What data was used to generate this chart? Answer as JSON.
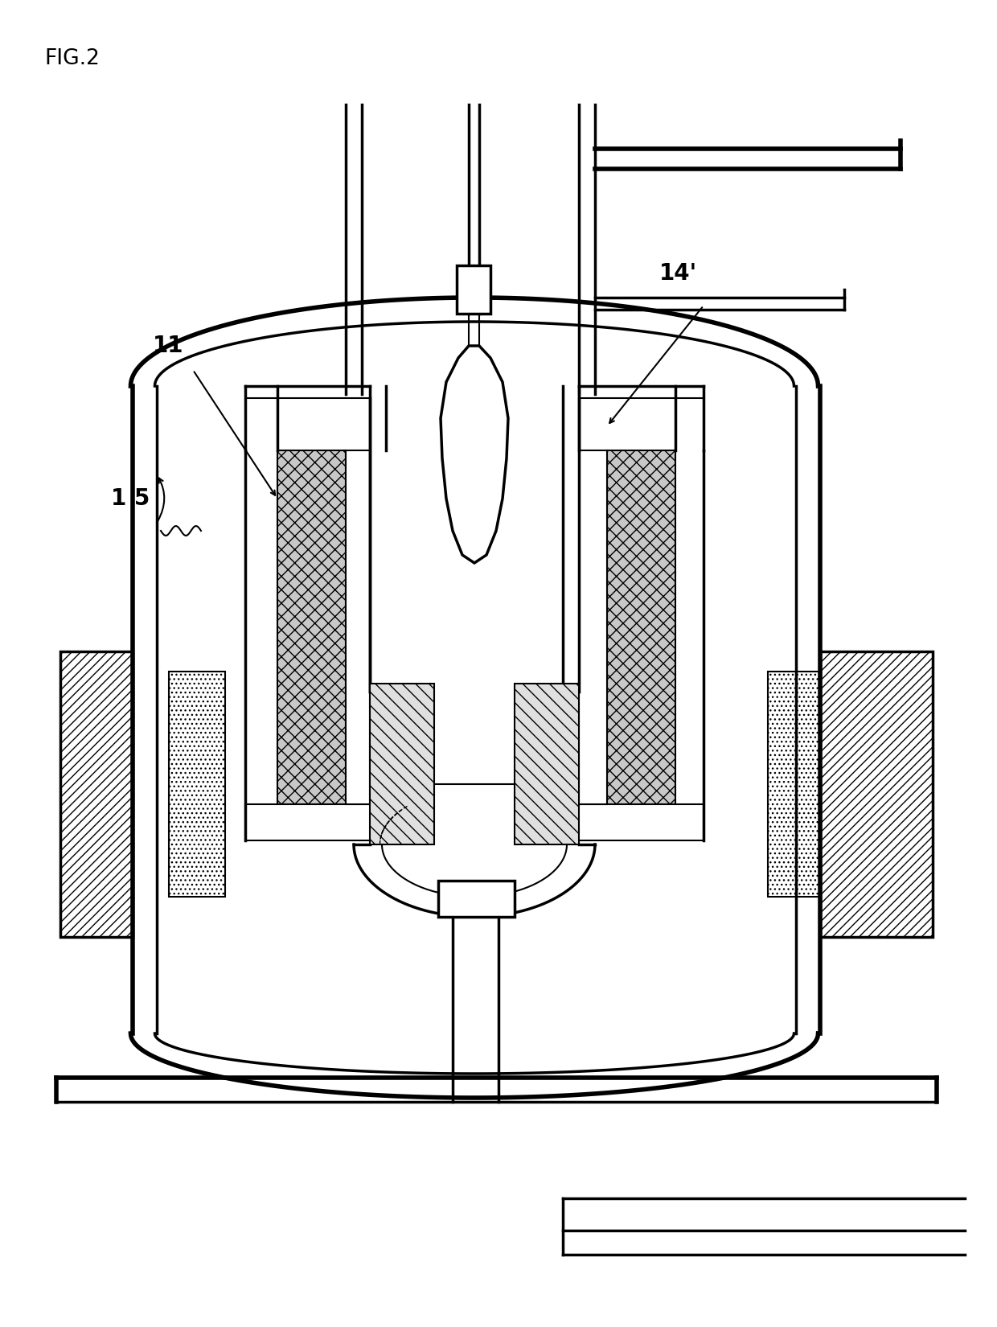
{
  "title": "FIG.2",
  "label_11": "11",
  "label_14": "14’",
  "label_15": "1 5",
  "bg": "#ffffff",
  "lc": "#000000",
  "figsize": [
    12.4,
    16.5
  ],
  "dpi": 100
}
